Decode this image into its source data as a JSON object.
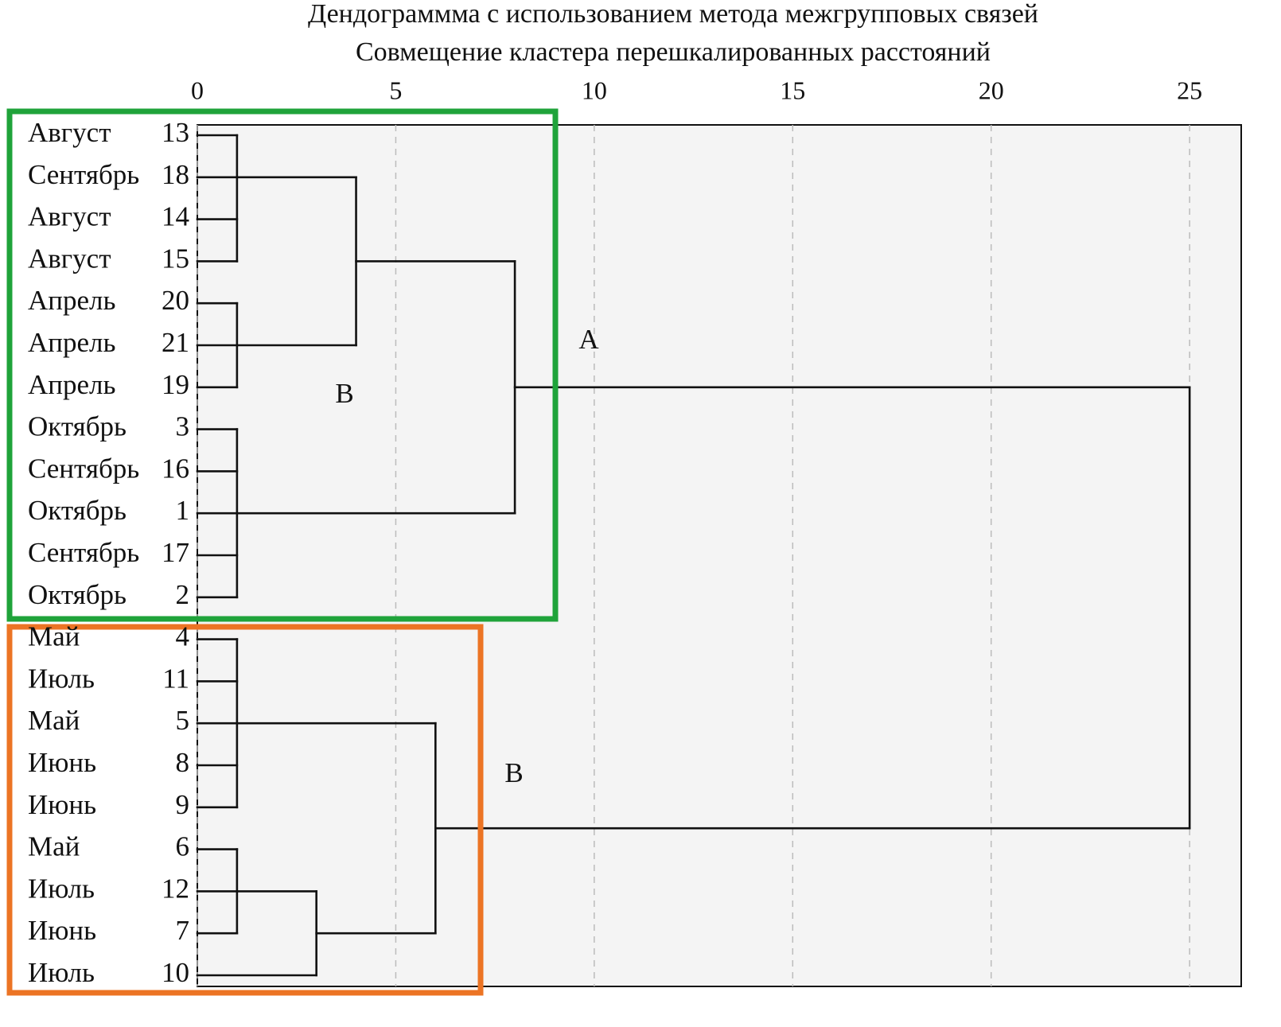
{
  "chart_data": {
    "type": "dendrogram",
    "title": "Дендограммма с использованием метода межгрупповых связей",
    "subtitle": "Совмещение кластера перешкалированных расстояний",
    "xlim": [
      0,
      26.3
    ],
    "xticks": [
      0,
      5,
      10,
      15,
      20,
      25
    ],
    "grid": true,
    "annotations": [
      "A",
      "B",
      "B"
    ],
    "tree": {
      "height": 25,
      "children": [
        {
          "height": 8,
          "children": [
            {
              "height": 4,
              "children": [
                {
                  "height": 1,
                  "children": [
                    {
                      "label": "Август",
                      "id": 13
                    },
                    {
                      "label": "Сентябрь",
                      "id": 18
                    },
                    {
                      "label": "Август",
                      "id": 14
                    },
                    {
                      "label": "Август",
                      "id": 15
                    }
                  ]
                },
                {
                  "height": 1,
                  "children": [
                    {
                      "label": "Апрель",
                      "id": 20
                    },
                    {
                      "label": "Апрель",
                      "id": 21
                    },
                    {
                      "label": "Апрель",
                      "id": 19
                    }
                  ]
                }
              ]
            },
            {
              "height": 1,
              "children": [
                {
                  "label": "Октябрь",
                  "id": 3
                },
                {
                  "label": "Сентябрь",
                  "id": 16
                },
                {
                  "label": "Октябрь",
                  "id": 1
                },
                {
                  "label": "Сентябрь",
                  "id": 17
                },
                {
                  "label": "Октябрь",
                  "id": 2
                }
              ]
            }
          ]
        },
        {
          "height": 6,
          "children": [
            {
              "height": 1,
              "children": [
                {
                  "label": "Май",
                  "id": 4
                },
                {
                  "label": "Июль",
                  "id": 11
                },
                {
                  "label": "Май",
                  "id": 5
                },
                {
                  "label": "Июнь",
                  "id": 8
                },
                {
                  "label": "Июнь",
                  "id": 9
                }
              ]
            },
            {
              "height": 3,
              "children": [
                {
                  "height": 1,
                  "children": [
                    {
                      "label": "Май",
                      "id": 6
                    },
                    {
                      "label": "Июль",
                      "id": 12
                    },
                    {
                      "label": "Июнь",
                      "id": 7
                    }
                  ]
                },
                {
                  "label": "Июль",
                  "id": 10
                }
              ]
            }
          ]
        }
      ]
    }
  }
}
